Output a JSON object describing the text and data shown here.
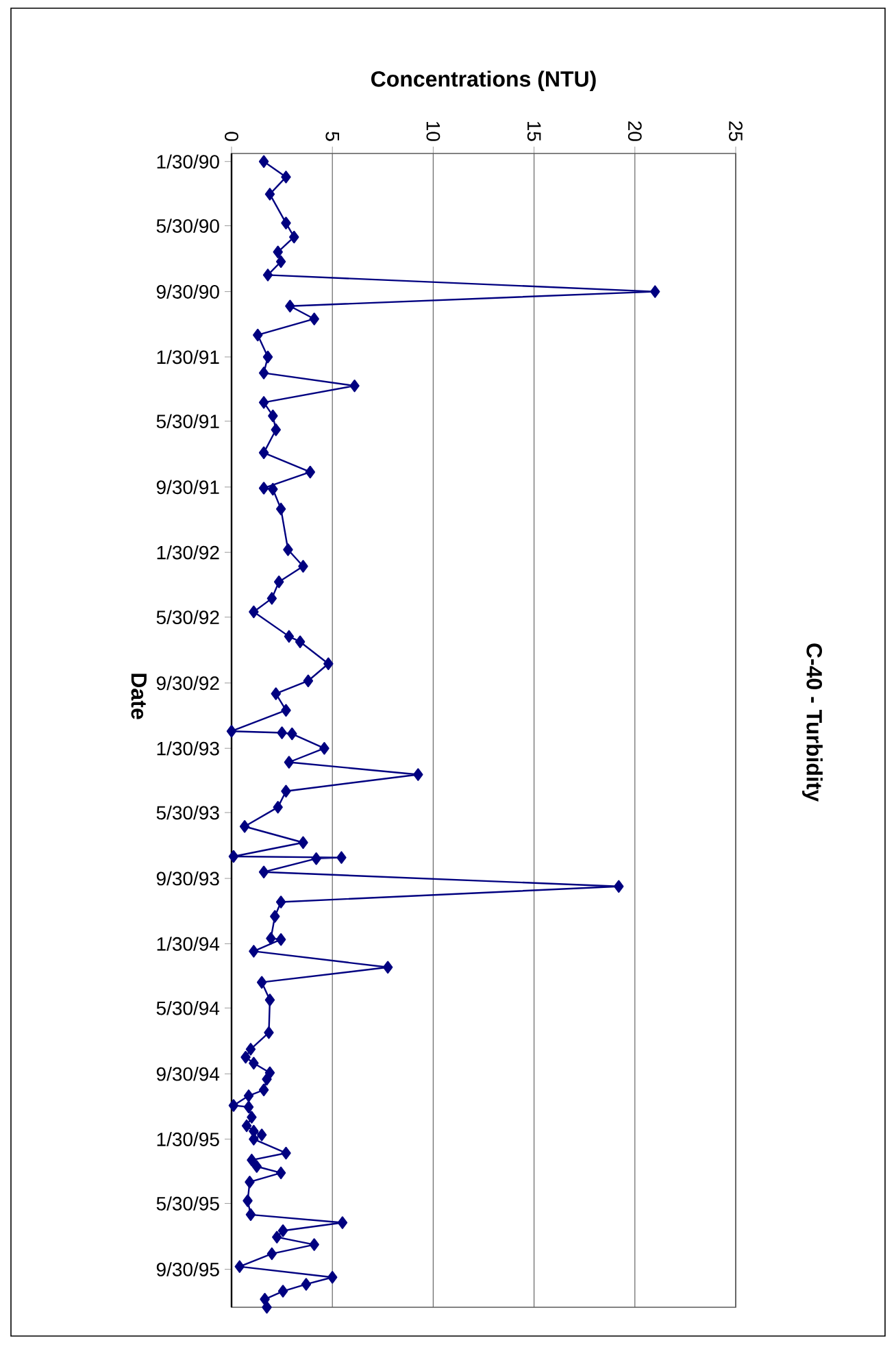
{
  "chart_data": {
    "type": "line",
    "orientation": "horizontal",
    "title": "C-40 - Turbidity",
    "ylabel": "Date",
    "xlabel": "Concentrations (NTU)",
    "ylim": [
      "1995-12-10",
      "1990-01-15"
    ],
    "xlim": [
      0,
      25
    ],
    "xticks": [
      0,
      5,
      10,
      15,
      20,
      25
    ],
    "yticks": [
      {
        "value": "1990-01-30",
        "label": "1/30/90"
      },
      {
        "value": "1990-05-30",
        "label": "5/30/90"
      },
      {
        "value": "1990-09-30",
        "label": "9/30/90"
      },
      {
        "value": "1991-01-30",
        "label": "1/30/91"
      },
      {
        "value": "1991-05-30",
        "label": "5/30/91"
      },
      {
        "value": "1991-09-30",
        "label": "9/30/91"
      },
      {
        "value": "1992-01-30",
        "label": "1/30/92"
      },
      {
        "value": "1992-05-30",
        "label": "5/30/92"
      },
      {
        "value": "1992-09-30",
        "label": "9/30/92"
      },
      {
        "value": "1993-01-30",
        "label": "1/30/93"
      },
      {
        "value": "1993-05-30",
        "label": "5/30/93"
      },
      {
        "value": "1993-09-30",
        "label": "9/30/93"
      },
      {
        "value": "1994-01-30",
        "label": "1/30/94"
      },
      {
        "value": "1994-05-30",
        "label": "5/30/94"
      },
      {
        "value": "1994-09-30",
        "label": "9/30/94"
      },
      {
        "value": "1995-01-30",
        "label": "1/30/95"
      },
      {
        "value": "1995-05-30",
        "label": "5/30/95"
      },
      {
        "value": "1995-09-30",
        "label": "9/30/95"
      }
    ],
    "grid": "x",
    "marker": "diamond",
    "line_style": "solid",
    "color": "#000080",
    "x": [
      "1990-01-30",
      "1990-02-28",
      "1990-04-01",
      "1990-05-25",
      "1990-06-20",
      "1990-07-18",
      "1990-08-05",
      "1990-08-30",
      "1990-09-30",
      "1990-10-27",
      "1990-11-20",
      "1990-12-20",
      "1991-01-30",
      "1991-03-01",
      "1991-03-25",
      "1991-04-25",
      "1991-05-20",
      "1991-06-15",
      "1991-07-28",
      "1991-09-02",
      "1991-10-02",
      "1991-10-04",
      "1991-11-10",
      "1992-01-25",
      "1992-02-25",
      "1992-03-25",
      "1992-04-25",
      "1992-05-20",
      "1992-07-05",
      "1992-07-15",
      "1992-08-25",
      "1992-09-26",
      "1992-10-20",
      "1992-11-20",
      "1992-12-29",
      "1993-01-01",
      "1993-01-03",
      "1993-01-30",
      "1993-02-25",
      "1993-03-20",
      "1993-04-20",
      "1993-05-20",
      "1993-06-25",
      "1993-07-25",
      "1993-08-20",
      "1993-08-22",
      "1993-08-24",
      "1993-09-18",
      "1993-10-15",
      "1993-11-13",
      "1993-12-10",
      "1994-01-20",
      "1994-01-22",
      "1994-02-13",
      "1994-03-15",
      "1994-04-12",
      "1994-05-15",
      "1994-07-15",
      "1994-08-15",
      "1994-08-30",
      "1994-09-10",
      "1994-09-28",
      "1994-10-10",
      "1994-10-30",
      "1994-11-10",
      "1994-11-28",
      "1994-12-01",
      "1994-12-20",
      "1995-01-05",
      "1995-01-15",
      "1995-01-22",
      "1995-01-30",
      "1995-02-25",
      "1995-03-10",
      "1995-03-22",
      "1995-04-03",
      "1995-04-20",
      "1995-05-25",
      "1995-06-20",
      "1995-07-05",
      "1995-07-20",
      "1995-08-01",
      "1995-08-15",
      "1995-09-01",
      "1995-09-25",
      "1995-10-15",
      "1995-10-28",
      "1995-11-10",
      "1995-11-25",
      "1995-12-10"
    ],
    "values": [
      1.6,
      2.7,
      1.9,
      2.7,
      3.1,
      2.3,
      2.45,
      1.8,
      21.0,
      2.9,
      4.1,
      1.3,
      1.8,
      1.6,
      6.1,
      1.6,
      2.05,
      2.2,
      1.6,
      3.9,
      1.6,
      2.05,
      2.45,
      2.8,
      3.55,
      2.35,
      2.0,
      1.1,
      2.85,
      3.4,
      4.8,
      3.8,
      2.2,
      2.7,
      0.0,
      2.5,
      3.0,
      4.6,
      2.85,
      9.25,
      2.7,
      2.3,
      0.65,
      3.55,
      0.1,
      5.45,
      4.2,
      1.6,
      19.2,
      2.45,
      2.15,
      1.95,
      2.45,
      1.1,
      7.75,
      1.5,
      1.9,
      1.85,
      0.95,
      0.7,
      1.1,
      1.9,
      1.75,
      1.6,
      0.85,
      0.1,
      0.85,
      1.0,
      0.75,
      1.1,
      1.5,
      1.1,
      2.7,
      1.0,
      1.25,
      2.45,
      0.9,
      0.8,
      0.95,
      5.5,
      2.55,
      2.25,
      4.1,
      2.0,
      0.4,
      5.0,
      3.7,
      2.55,
      1.65,
      1.75
    ]
  }
}
